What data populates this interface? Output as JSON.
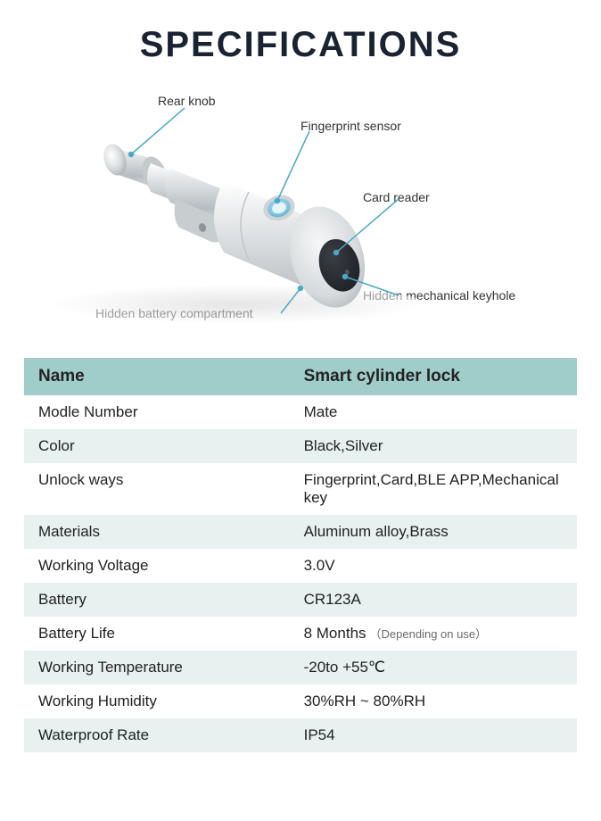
{
  "title": "SPECIFICATIONS",
  "diagram": {
    "callouts": {
      "rear_knob": "Rear knob",
      "fingerprint_sensor": "Fingerprint sensor",
      "card_reader": "Card reader",
      "hidden_keyhole": "Hidden mechanical keyhole",
      "hidden_battery": "Hidden battery compartment"
    },
    "colors": {
      "lock_body": "#d6dadd",
      "lock_body_light": "#ecedee",
      "lock_body_shadow": "#aab0b4",
      "sensor_ring": "#6fb9d6",
      "card_reader": "#2a2e33",
      "leader_line": "#4aa9c7",
      "text": "#333333",
      "floor_shadow": "#e8e8e8"
    }
  },
  "table": {
    "header": {
      "label": "Name",
      "value": "Smart cylinder lock"
    },
    "rows": [
      {
        "label": "Modle Number",
        "value": "Mate"
      },
      {
        "label": "Color",
        "value": "Black,Silver"
      },
      {
        "label": "Unlock ways",
        "value": "Fingerprint,Card,BLE APP,Mechanical key"
      },
      {
        "label": "Materials",
        "value": "Aluminum alloy,Brass"
      },
      {
        "label": "Working Voltage",
        "value": "3.0V"
      },
      {
        "label": "Battery",
        "value": "CR123A"
      },
      {
        "label": "Battery Life",
        "value": "8 Months",
        "note": "（Depending on use）"
      },
      {
        "label": "Working Temperature",
        "value": "-20to +55℃"
      },
      {
        "label": "Working Humidity",
        "value": "30%RH ~ 80%RH"
      },
      {
        "label": "Waterproof Rate",
        "value": "IP54"
      }
    ],
    "colors": {
      "header_bg": "#a0ccc9",
      "row_even_bg": "#ffffff",
      "row_odd_bg": "#e6f1f0",
      "text": "#222222",
      "note_text": "#6b6b6b"
    }
  }
}
